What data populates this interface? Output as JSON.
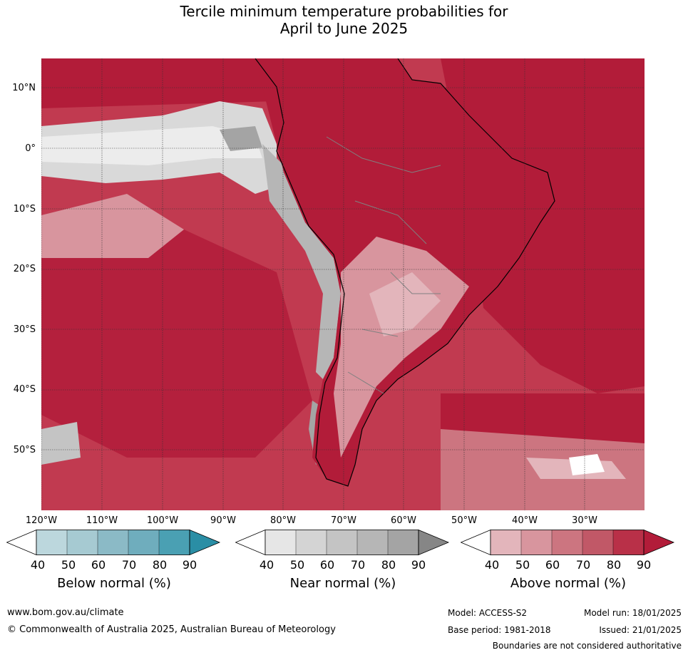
{
  "title_line1": "Tercile minimum temperature probabilities for",
  "title_line2": "April to June 2025",
  "lat_labels": [
    "10°N",
    "0°",
    "10°S",
    "20°S",
    "30°S",
    "40°S",
    "50°S"
  ],
  "lon_labels": [
    "120°W",
    "110°W",
    "100°W",
    "90°W",
    "80°W",
    "70°W",
    "60°W",
    "50°W",
    "40°W",
    "30°W"
  ],
  "colorbars": [
    {
      "label": "Below normal (%)",
      "ticks": [
        "40",
        "50",
        "60",
        "70",
        "80",
        "90"
      ],
      "colors": [
        "#ffffff",
        "#bcd7dd",
        "#a6cad2",
        "#8bbac6",
        "#6fadbd",
        "#4aa0b3",
        "#2a8ea5"
      ]
    },
    {
      "label": "Near normal (%)",
      "ticks": [
        "40",
        "50",
        "60",
        "70",
        "80",
        "90"
      ],
      "colors": [
        "#ffffff",
        "#e6e6e6",
        "#d4d4d4",
        "#c4c4c4",
        "#b6b6b6",
        "#a4a4a4",
        "#868686"
      ]
    },
    {
      "label": "Above normal (%)",
      "ticks": [
        "40",
        "50",
        "60",
        "70",
        "80",
        "90"
      ],
      "colors": [
        "#ffffff",
        "#e3b5bb",
        "#d8959e",
        "#cc7580",
        "#c15867",
        "#b93048",
        "#b21c39"
      ]
    }
  ],
  "footer": {
    "website": "www.bom.gov.au/climate",
    "copyright": "© Commonwealth of Australia 2025, Australian Bureau of Meteorology",
    "model": "Model: ACCESS-S2",
    "model_run": "Model run: 18/01/2025",
    "base_period": "Base period: 1981-2018",
    "issued": "Issued: 21/01/2025",
    "boundaries": "Boundaries are not considered authoritative"
  }
}
